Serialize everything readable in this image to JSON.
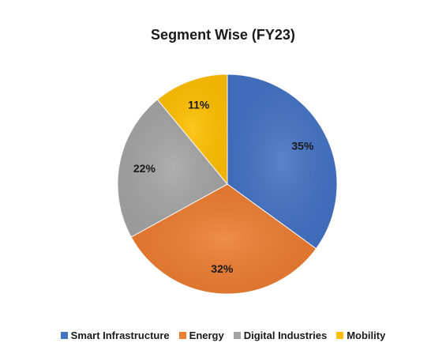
{
  "chart_data": {
    "type": "pie",
    "title": "Segment Wise (FY23)",
    "categories": [
      "Smart Infrastructure",
      "Energy",
      "Digital Industries",
      "Mobility"
    ],
    "values": [
      35,
      32,
      22,
      11
    ],
    "labels": [
      "35%",
      "32%",
      "22%",
      "11%"
    ],
    "colors": [
      "#4472C4",
      "#ED7D31",
      "#A5A5A5",
      "#FFC000"
    ],
    "start_angle_deg": 0,
    "direction": "clockwise",
    "legend_position": "bottom"
  }
}
